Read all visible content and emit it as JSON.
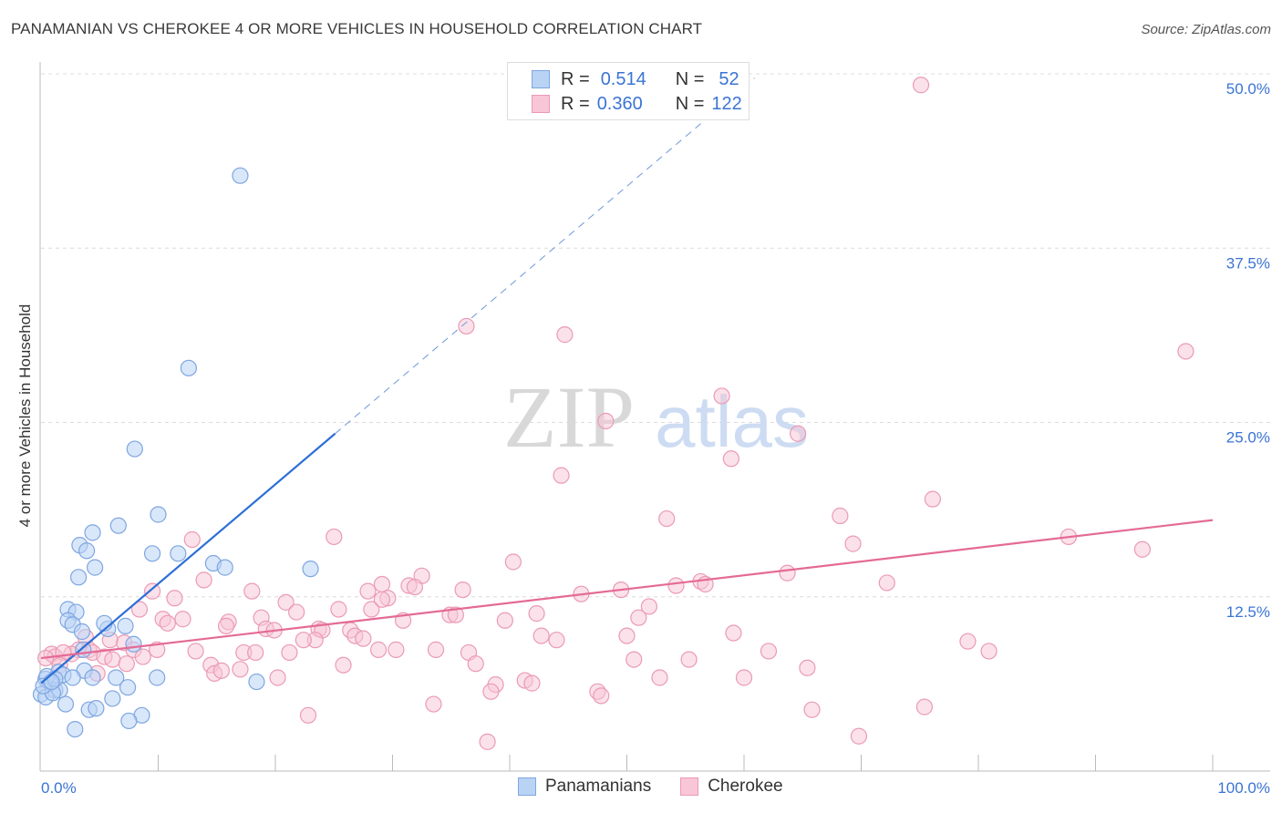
{
  "title": "PANAMANIAN VS CHEROKEE 4 OR MORE VEHICLES IN HOUSEHOLD CORRELATION CHART",
  "source": "Source: ZipAtlas.com",
  "watermark": {
    "zip": "ZIP",
    "atlas": "atlas"
  },
  "legend": {
    "rows": [
      {
        "r_label": "R =",
        "r_value": "0.514",
        "n_label": "N =",
        "n_value": "52"
      },
      {
        "r_label": "R =",
        "r_value": "0.360",
        "n_label": "N =",
        "n_value": "122"
      }
    ]
  },
  "chart_data": {
    "type": "scatter",
    "title": "PANAMANIAN VS CHEROKEE 4 OR MORE VEHICLES IN HOUSEHOLD CORRELATION CHART",
    "xlabel": "",
    "ylabel": "4 or more Vehicles in Household",
    "xlim": [
      0,
      100
    ],
    "ylim": [
      0,
      50
    ],
    "x_tick_labels": [
      "0.0%",
      "100.0%"
    ],
    "y_ticks": [
      12.5,
      25,
      37.5,
      50
    ],
    "y_tick_labels": [
      "12.5%",
      "25.0%",
      "37.5%",
      "50.0%"
    ],
    "grid": true,
    "legend_position": "bottom",
    "colors": {
      "Panamanians": "#3b74d4",
      "Cherokee": "#e8709a",
      "Panamanians_fill": "#b9d3f5",
      "Cherokee_fill": "#f8c6d6"
    },
    "series": [
      {
        "name": "Panamanians",
        "r": 0.514,
        "n": 52,
        "trend": {
          "x0": 0,
          "y0": 6.3,
          "x1": 25.1,
          "y1": 24.2,
          "dashed_to_x": 60.9,
          "dashed_to_y": 49.7
        },
        "points": [
          [
            17.0,
            42.7
          ],
          [
            12.6,
            28.9
          ],
          [
            8.0,
            23.1
          ],
          [
            10.0,
            18.4
          ],
          [
            4.4,
            17.1
          ],
          [
            6.6,
            17.6
          ],
          [
            3.3,
            16.2
          ],
          [
            3.9,
            15.8
          ],
          [
            4.6,
            14.6
          ],
          [
            9.5,
            15.6
          ],
          [
            11.7,
            15.6
          ],
          [
            14.7,
            14.9
          ],
          [
            15.7,
            14.6
          ],
          [
            23.0,
            14.5
          ],
          [
            3.2,
            13.9
          ],
          [
            2.3,
            11.6
          ],
          [
            3.0,
            11.4
          ],
          [
            2.3,
            10.8
          ],
          [
            2.7,
            10.5
          ],
          [
            3.5,
            10.0
          ],
          [
            7.2,
            10.4
          ],
          [
            5.7,
            10.2
          ],
          [
            5.4,
            10.6
          ],
          [
            7.9,
            9.1
          ],
          [
            3.6,
            8.7
          ],
          [
            3.7,
            7.2
          ],
          [
            1.5,
            7.1
          ],
          [
            1.9,
            6.9
          ],
          [
            2.7,
            6.7
          ],
          [
            4.4,
            6.7
          ],
          [
            6.4,
            6.7
          ],
          [
            9.9,
            6.7
          ],
          [
            18.4,
            6.4
          ],
          [
            0.4,
            6.6
          ],
          [
            0.8,
            6.3
          ],
          [
            1.2,
            5.8
          ],
          [
            1.6,
            5.8
          ],
          [
            7.4,
            6.0
          ],
          [
            6.1,
            5.2
          ],
          [
            2.1,
            4.8
          ],
          [
            4.1,
            4.4
          ],
          [
            4.7,
            4.5
          ],
          [
            8.6,
            4.0
          ],
          [
            7.5,
            3.6
          ],
          [
            2.9,
            3.0
          ],
          [
            0.0,
            5.5
          ],
          [
            0.4,
            5.3
          ],
          [
            1.0,
            5.6
          ],
          [
            0.5,
            6.8
          ],
          [
            0.2,
            6.1
          ],
          [
            1.2,
            6.6
          ],
          [
            0.9,
            6.4
          ]
        ]
      },
      {
        "name": "Cherokee",
        "r": 0.36,
        "n": 122,
        "trend": {
          "x0": 0,
          "y0": 8.1,
          "x1": 100,
          "y1": 18.0
        },
        "points": [
          [
            75.1,
            49.2
          ],
          [
            97.7,
            30.1
          ],
          [
            36.3,
            31.9
          ],
          [
            44.7,
            31.3
          ],
          [
            58.1,
            26.9
          ],
          [
            48.2,
            25.1
          ],
          [
            64.6,
            24.2
          ],
          [
            58.9,
            22.4
          ],
          [
            44.4,
            21.2
          ],
          [
            76.1,
            19.5
          ],
          [
            68.2,
            18.3
          ],
          [
            53.4,
            18.1
          ],
          [
            25.0,
            16.8
          ],
          [
            12.9,
            16.6
          ],
          [
            87.7,
            16.8
          ],
          [
            69.3,
            16.3
          ],
          [
            94.0,
            15.9
          ],
          [
            40.3,
            15.0
          ],
          [
            63.7,
            14.2
          ],
          [
            72.2,
            13.5
          ],
          [
            13.9,
            13.7
          ],
          [
            32.5,
            14.0
          ],
          [
            31.4,
            13.3
          ],
          [
            29.1,
            13.4
          ],
          [
            31.9,
            13.2
          ],
          [
            27.9,
            12.9
          ],
          [
            18.0,
            12.9
          ],
          [
            36.0,
            13.0
          ],
          [
            46.1,
            12.7
          ],
          [
            49.5,
            13.0
          ],
          [
            54.2,
            13.3
          ],
          [
            56.3,
            13.6
          ],
          [
            56.7,
            13.4
          ],
          [
            9.5,
            12.9
          ],
          [
            11.4,
            12.4
          ],
          [
            20.9,
            12.1
          ],
          [
            25.4,
            11.6
          ],
          [
            28.2,
            11.6
          ],
          [
            29.6,
            12.4
          ],
          [
            29.1,
            12.3
          ],
          [
            8.4,
            11.6
          ],
          [
            21.8,
            11.4
          ],
          [
            51.9,
            11.8
          ],
          [
            42.3,
            11.3
          ],
          [
            34.9,
            11.2
          ],
          [
            35.4,
            11.2
          ],
          [
            18.8,
            11.0
          ],
          [
            10.4,
            10.9
          ],
          [
            12.1,
            10.9
          ],
          [
            10.8,
            10.6
          ],
          [
            16.0,
            10.7
          ],
          [
            30.9,
            10.8
          ],
          [
            39.6,
            10.8
          ],
          [
            51.0,
            11.0
          ],
          [
            19.2,
            10.2
          ],
          [
            19.9,
            10.1
          ],
          [
            23.7,
            10.2
          ],
          [
            24.0,
            10.1
          ],
          [
            15.8,
            10.4
          ],
          [
            26.4,
            10.1
          ],
          [
            26.8,
            9.7
          ],
          [
            27.5,
            9.5
          ],
          [
            42.7,
            9.7
          ],
          [
            23.4,
            9.4
          ],
          [
            44.0,
            9.4
          ],
          [
            50.0,
            9.7
          ],
          [
            59.1,
            9.9
          ],
          [
            22.4,
            9.4
          ],
          [
            5.9,
            9.4
          ],
          [
            7.1,
            9.2
          ],
          [
            7.9,
            8.7
          ],
          [
            3.8,
            9.6
          ],
          [
            3.2,
            8.7
          ],
          [
            4.1,
            8.7
          ],
          [
            4.4,
            8.5
          ],
          [
            5.4,
            8.2
          ],
          [
            13.2,
            8.6
          ],
          [
            9.9,
            8.7
          ],
          [
            17.3,
            8.5
          ],
          [
            18.3,
            8.5
          ],
          [
            21.2,
            8.5
          ],
          [
            28.8,
            8.7
          ],
          [
            30.3,
            8.7
          ],
          [
            33.7,
            8.7
          ],
          [
            36.5,
            8.5
          ],
          [
            62.1,
            8.6
          ],
          [
            79.1,
            9.3
          ],
          [
            80.9,
            8.6
          ],
          [
            0.9,
            8.4
          ],
          [
            1.2,
            8.2
          ],
          [
            2.6,
            8.4
          ],
          [
            1.9,
            8.5
          ],
          [
            8.7,
            8.2
          ],
          [
            6.1,
            8.0
          ],
          [
            7.3,
            7.7
          ],
          [
            14.5,
            7.6
          ],
          [
            14.8,
            7.0
          ],
          [
            15.4,
            7.2
          ],
          [
            17.0,
            7.3
          ],
          [
            25.8,
            7.6
          ],
          [
            37.1,
            7.7
          ],
          [
            50.6,
            8.0
          ],
          [
            55.3,
            8.0
          ],
          [
            65.4,
            7.4
          ],
          [
            4.8,
            7.0
          ],
          [
            20.2,
            6.7
          ],
          [
            38.8,
            6.2
          ],
          [
            41.3,
            6.5
          ],
          [
            41.9,
            6.3
          ],
          [
            52.8,
            6.7
          ],
          [
            60.0,
            6.7
          ],
          [
            38.4,
            5.7
          ],
          [
            47.5,
            5.7
          ],
          [
            47.8,
            5.4
          ],
          [
            33.5,
            4.8
          ],
          [
            65.8,
            4.4
          ],
          [
            75.4,
            4.6
          ],
          [
            22.8,
            4.0
          ],
          [
            38.1,
            2.1
          ],
          [
            69.8,
            2.5
          ],
          [
            0.4,
            8.1
          ],
          [
            1.6,
            7.6
          ]
        ]
      }
    ]
  }
}
